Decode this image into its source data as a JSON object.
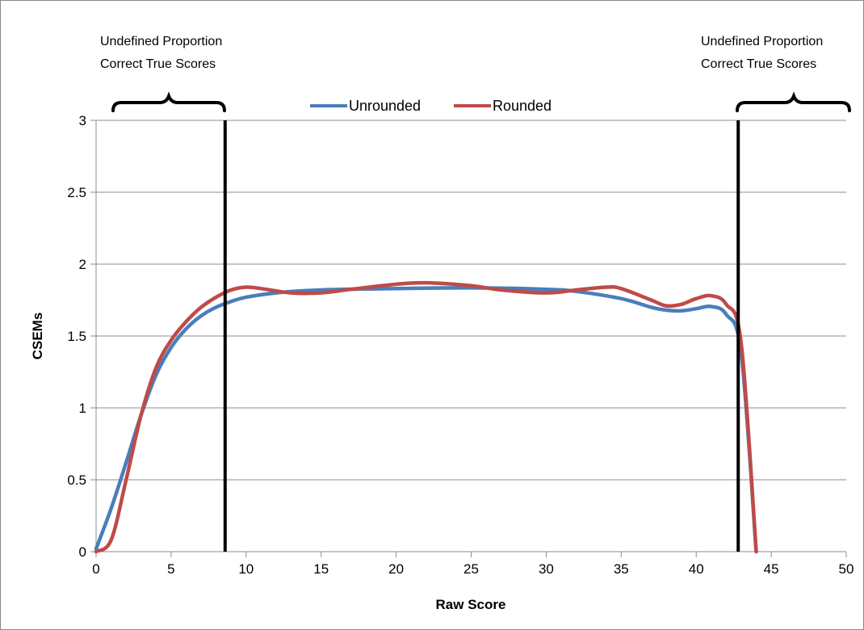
{
  "chart_data": {
    "type": "line",
    "title": "",
    "xlabel": "Raw Score",
    "ylabel": "CSEMs",
    "xlim": [
      0,
      50
    ],
    "ylim": [
      0,
      3
    ],
    "xticks": [
      0,
      5,
      10,
      15,
      20,
      25,
      30,
      35,
      40,
      45,
      50
    ],
    "yticks": [
      0,
      0.5,
      1,
      1.5,
      2,
      2.5,
      3
    ],
    "ytick_labels": [
      "0",
      "0.5",
      "1",
      "1.5",
      "2",
      "2.5",
      "3"
    ],
    "grid": true,
    "legend_position": "top-center",
    "series": [
      {
        "name": "Unrounded",
        "color": "#4a7ebb",
        "x": [
          0,
          1,
          2,
          3,
          4,
          5,
          6,
          7,
          8,
          9,
          10,
          12,
          15,
          20,
          25,
          30,
          32,
          35,
          37,
          38,
          39,
          40,
          41,
          42,
          43,
          44
        ],
        "y": [
          0.02,
          0.3,
          0.62,
          0.95,
          1.23,
          1.42,
          1.55,
          1.64,
          1.7,
          1.74,
          1.77,
          1.8,
          1.82,
          1.83,
          1.835,
          1.825,
          1.81,
          1.76,
          1.7,
          1.68,
          1.675,
          1.69,
          1.705,
          1.65,
          1.38,
          0
        ]
      },
      {
        "name": "Rounded",
        "color": "#be4b48",
        "x": [
          0,
          1,
          2,
          3,
          4,
          5,
          6,
          7,
          8,
          9,
          10,
          11,
          13,
          15,
          17,
          20,
          22,
          25,
          27,
          30,
          32,
          34,
          35,
          37,
          38,
          39,
          40,
          41,
          42,
          43,
          44
        ],
        "y": [
          0,
          0.08,
          0.5,
          0.95,
          1.28,
          1.47,
          1.6,
          1.7,
          1.77,
          1.82,
          1.84,
          1.83,
          1.8,
          1.8,
          1.825,
          1.86,
          1.87,
          1.85,
          1.82,
          1.8,
          1.82,
          1.84,
          1.83,
          1.75,
          1.71,
          1.72,
          1.76,
          1.78,
          1.72,
          1.45,
          0
        ]
      }
    ],
    "markers": [
      {
        "x": 8.6
      },
      {
        "x": 42.8
      }
    ],
    "annotations": [
      {
        "text_lines": [
          "Undefined Proportion",
          "Correct True Scores"
        ],
        "position": "top-left"
      },
      {
        "text_lines": [
          "Undefined Proportion",
          "Correct True Scores"
        ],
        "position": "top-right"
      }
    ]
  }
}
